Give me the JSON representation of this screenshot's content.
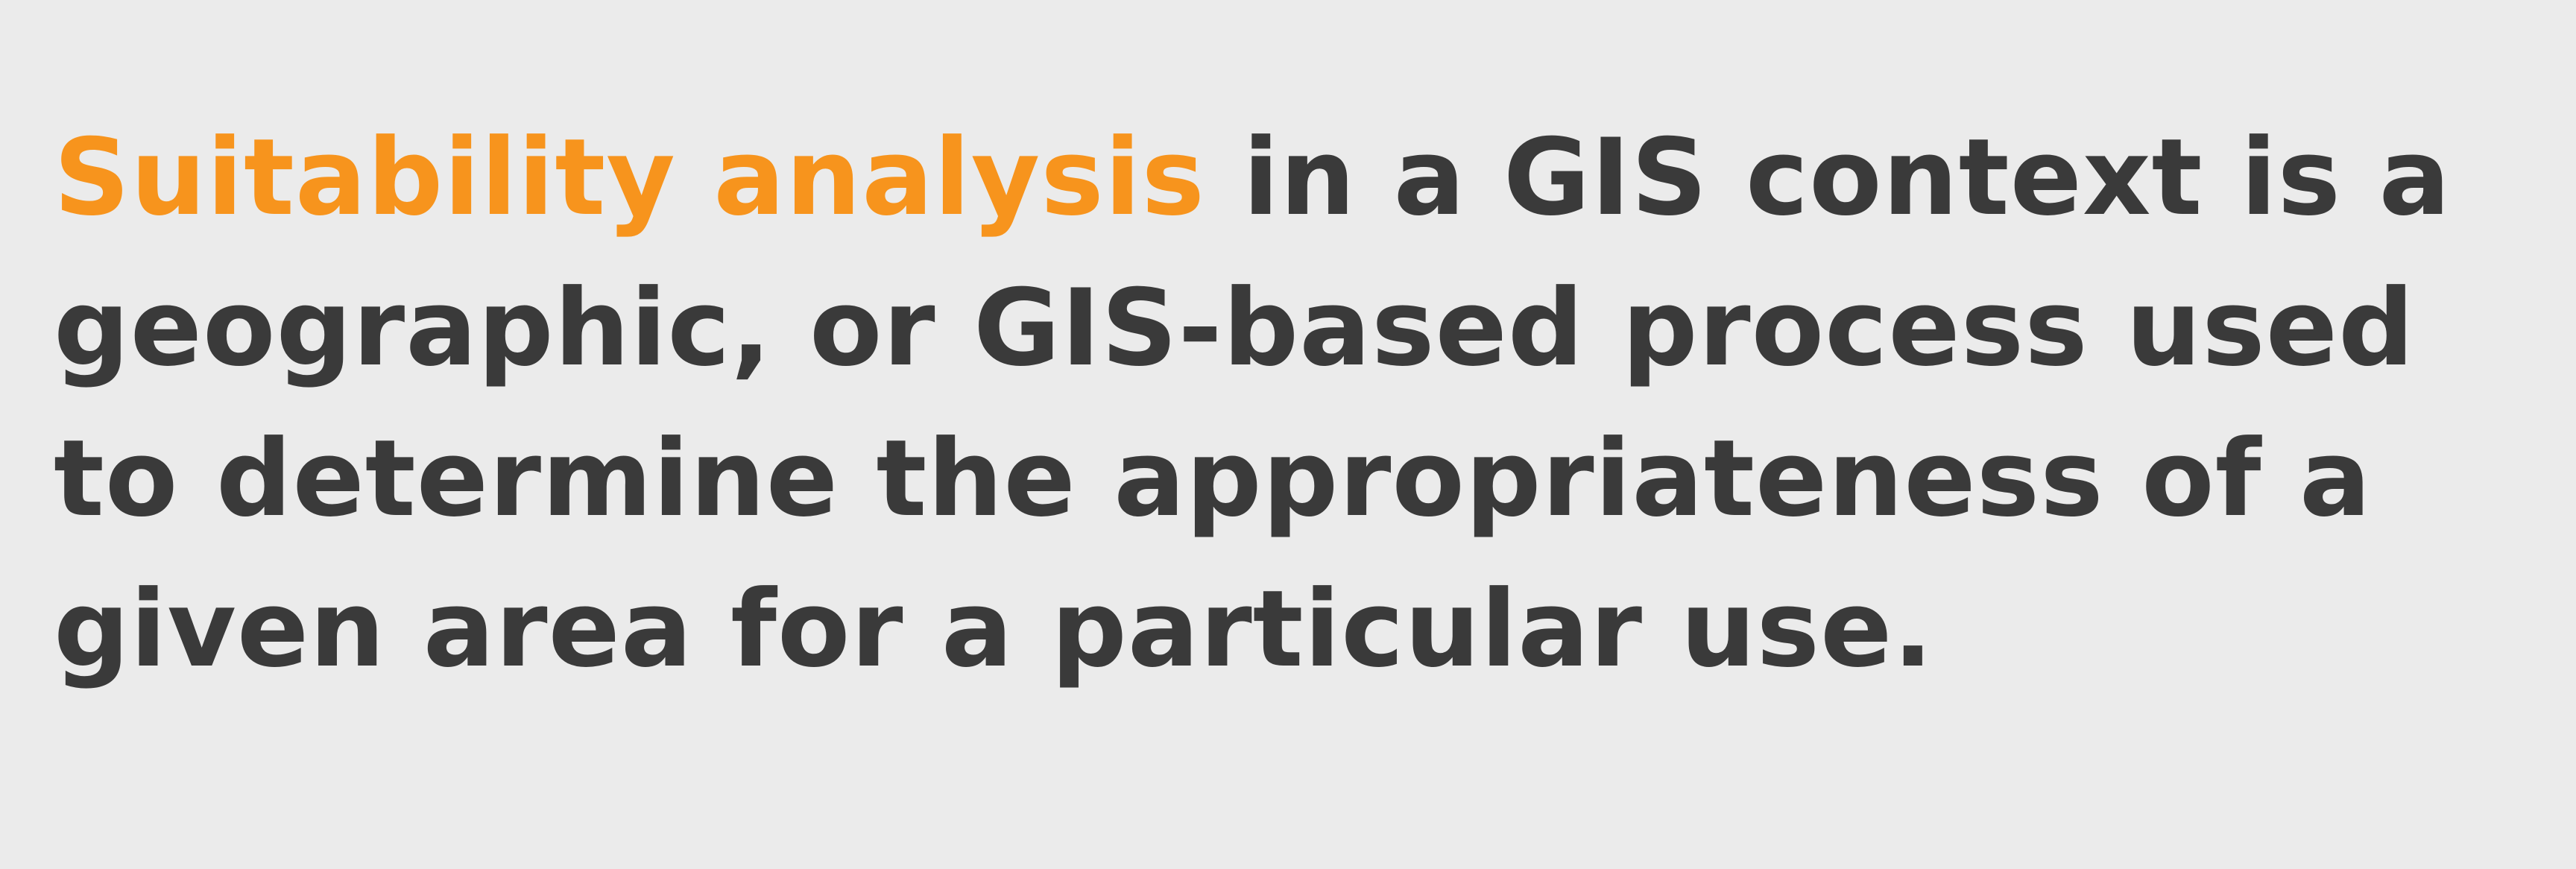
{
  "statement": {
    "highlight_text": "Suitability analysis",
    "body_text": " in a GIS context is a geographic, or GIS-based process used to determine the appropriateness of a given area for a particular use."
  },
  "colors": {
    "background": "#ebebeb",
    "text": "#3a3a3a",
    "highlight": "#f7941d"
  }
}
